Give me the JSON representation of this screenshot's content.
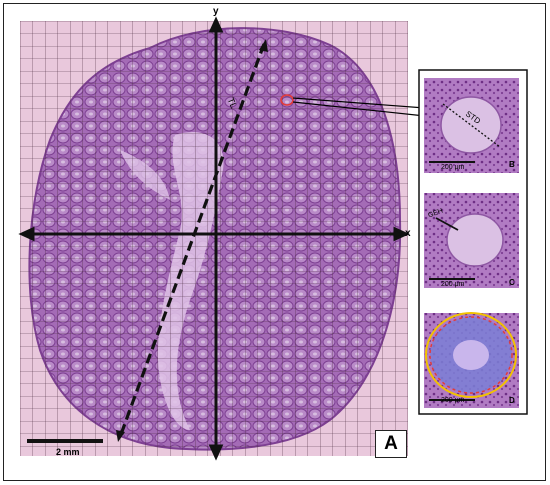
{
  "figure": {
    "panel_label_A": "A",
    "axis_y_label": "y",
    "axis_x_label": "x",
    "tl_label": "TL",
    "scale_bar_main": "2 mm",
    "insets": [
      {
        "label": "B",
        "measure": "STD",
        "scale": "200 μm"
      },
      {
        "label": "C",
        "measure": "GEH",
        "scale": "200 μm"
      },
      {
        "label": "D",
        "measure": "",
        "scale": "200 μm"
      }
    ]
  },
  "colors": {
    "tissue": "#a46bb6",
    "tissue_dark": "#7d3f92",
    "grid": "#4a2b3f",
    "background_pink": "#e9c8dc",
    "marker_red": "#e23b3b",
    "outline_yellow": "#f2c200",
    "lumen_blue": "#7b7fd6"
  }
}
